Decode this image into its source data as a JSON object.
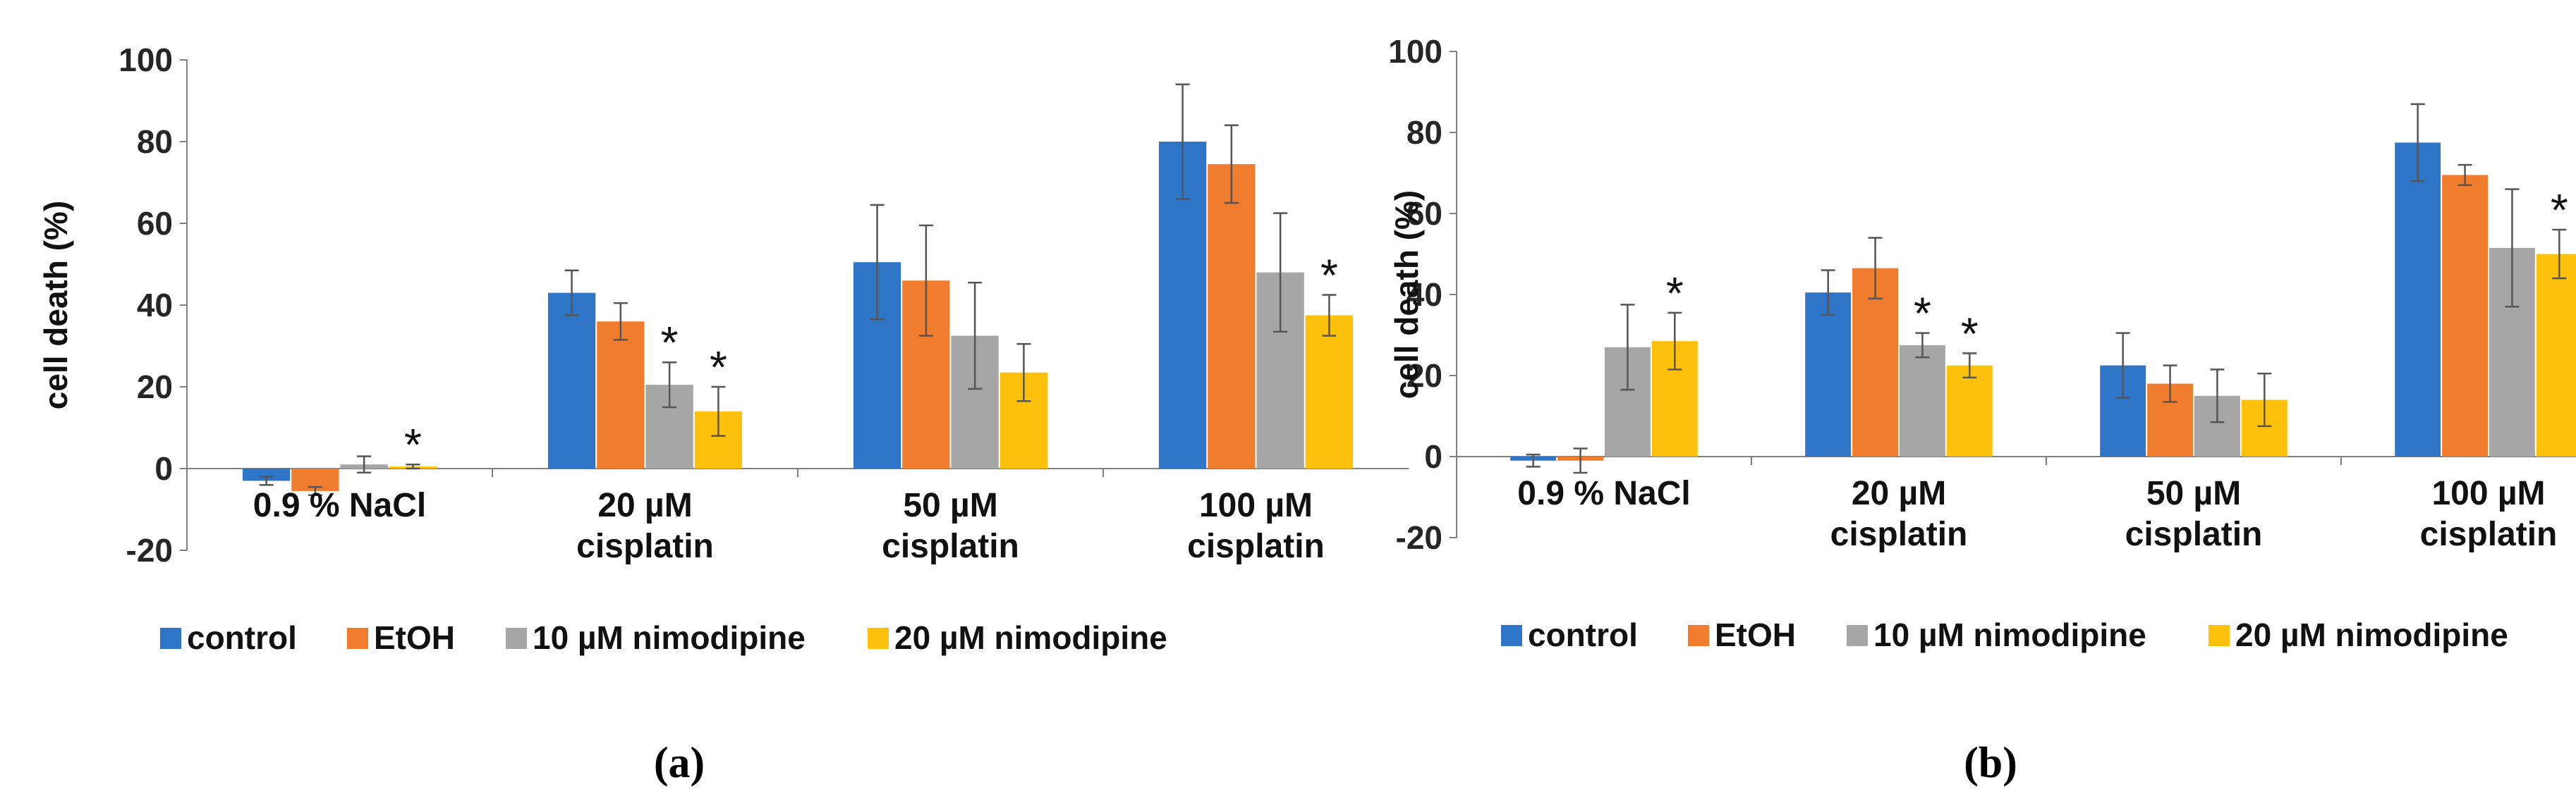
{
  "figure": {
    "series_colors": {
      "control": "#2e75c7",
      "EtOH": "#f07c2e",
      "10 µM nimodipine": "#a6a6a6",
      "20 µM nimodipine": "#fdc10b"
    },
    "error_bar_color": "#555555"
  },
  "chart_data": [
    {
      "type": "bar",
      "panel_label": "(a)",
      "title": "",
      "xlabel": "",
      "ylabel": "cell death (%)",
      "ylim": [
        -20,
        100
      ],
      "yticks": [
        -20,
        0,
        20,
        40,
        60,
        80,
        100
      ],
      "grid": false,
      "legend_position": "bottom",
      "categories": [
        [
          "0.9 % NaCl"
        ],
        [
          "20 µM",
          "cisplatin"
        ],
        [
          "50 µM",
          "cisplatin"
        ],
        [
          "100 µM",
          "cisplatin"
        ]
      ],
      "series": [
        {
          "name": "control",
          "values": [
            -3,
            43,
            50.5,
            80
          ],
          "errors": [
            1,
            5.5,
            14,
            14
          ]
        },
        {
          "name": "EtOH",
          "values": [
            -5.5,
            36,
            46,
            74.5
          ],
          "errors": [
            1,
            4.5,
            13.5,
            9.5
          ]
        },
        {
          "name": "10 µM nimodipine",
          "values": [
            1,
            20.5,
            32.5,
            48
          ],
          "errors": [
            2,
            5.5,
            13,
            14.5
          ]
        },
        {
          "name": "20 µM nimodipine",
          "values": [
            0.5,
            14,
            23.5,
            37.5
          ],
          "errors": [
            0.5,
            6,
            7,
            5
          ]
        }
      ],
      "annotations": [
        {
          "text": "*",
          "category": 0,
          "series": 3
        },
        {
          "text": "*",
          "category": 1,
          "series": 2
        },
        {
          "text": "*",
          "category": 1,
          "series": 3
        },
        {
          "text": "*",
          "category": 3,
          "series": 3
        }
      ]
    },
    {
      "type": "bar",
      "panel_label": "(b)",
      "title": "",
      "xlabel": "",
      "ylabel": "cell death (%)",
      "ylim": [
        -20,
        100
      ],
      "yticks": [
        -20,
        0,
        20,
        40,
        60,
        80,
        100
      ],
      "grid": false,
      "legend_position": "bottom",
      "categories": [
        [
          "0.9 % NaCl"
        ],
        [
          "20 µM",
          "cisplatin"
        ],
        [
          "50 µM",
          "cisplatin"
        ],
        [
          "100 µM",
          "cisplatin"
        ]
      ],
      "series": [
        {
          "name": "control",
          "values": [
            -1,
            40.5,
            22.5,
            77.5
          ],
          "errors": [
            1.5,
            5.5,
            8,
            9.5
          ]
        },
        {
          "name": "EtOH",
          "values": [
            -1,
            46.5,
            18,
            69.5
          ],
          "errors": [
            3,
            7.5,
            4.5,
            2.5
          ]
        },
        {
          "name": "10 µM nimodipine",
          "values": [
            27,
            27.5,
            15,
            51.5
          ],
          "errors": [
            10.5,
            3,
            6.5,
            14.5
          ]
        },
        {
          "name": "20 µM nimodipine",
          "values": [
            28.5,
            22.5,
            14,
            50
          ],
          "errors": [
            7,
            3,
            6.5,
            6
          ]
        }
      ],
      "annotations": [
        {
          "text": "*",
          "category": 0,
          "series": 3
        },
        {
          "text": "*",
          "category": 1,
          "series": 2
        },
        {
          "text": "*",
          "category": 1,
          "series": 3
        },
        {
          "text": "*",
          "category": 3,
          "series": 3
        }
      ]
    }
  ]
}
